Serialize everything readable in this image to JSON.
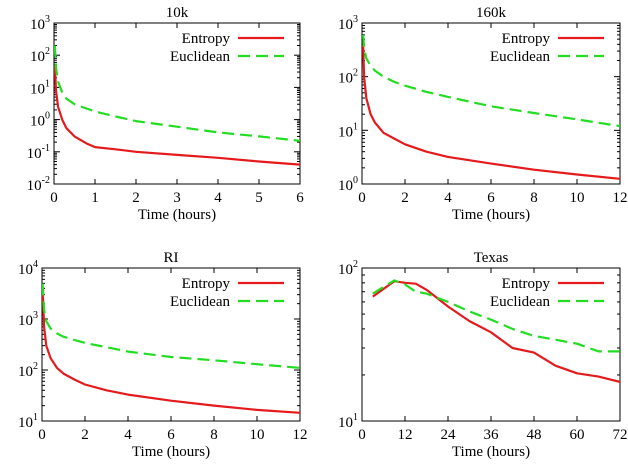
{
  "figure": {
    "colors": {
      "entropy": "#e41a1c",
      "euclidean": "#22dd22",
      "axis": "#000000"
    }
  },
  "chart_data": [
    {
      "type": "line",
      "title": "10k",
      "xlabel": "Time (hours)",
      "ylabel": "",
      "yscale": "log",
      "xlim": [
        0,
        6
      ],
      "ylim": [
        0.01,
        1000
      ],
      "xticks": [
        0,
        1,
        2,
        3,
        4,
        5,
        6
      ],
      "xtick_labels": [
        "0",
        "1",
        "2",
        "3",
        "4",
        "5",
        "6"
      ],
      "yticks": [
        0.01,
        0.1,
        1,
        10,
        100,
        1000
      ],
      "ytick_labels": [
        {
          "base": "10",
          "exp": "-2"
        },
        {
          "base": "10",
          "exp": "-1"
        },
        {
          "base": "10",
          "exp": "0"
        },
        {
          "base": "10",
          "exp": "1"
        },
        {
          "base": "10",
          "exp": "2"
        },
        {
          "base": "10",
          "exp": "3"
        }
      ],
      "legend_position": "top-right",
      "series": [
        {
          "name": "Entropy",
          "style": "solid",
          "x": [
            0.02,
            0.05,
            0.1,
            0.2,
            0.3,
            0.5,
            0.8,
            1.0,
            1.5,
            2.0,
            3.0,
            4.0,
            5.0,
            6.0
          ],
          "y": [
            50,
            8,
            2.5,
            1.0,
            0.55,
            0.3,
            0.18,
            0.14,
            0.12,
            0.1,
            0.08,
            0.065,
            0.05,
            0.04
          ]
        },
        {
          "name": "Euclidean",
          "style": "dashed",
          "x": [
            0.02,
            0.05,
            0.1,
            0.2,
            0.3,
            0.5,
            0.8,
            1.0,
            1.5,
            2.0,
            3.0,
            4.0,
            5.0,
            6.0
          ],
          "y": [
            200,
            40,
            15,
            7,
            4.5,
            3.0,
            2.2,
            1.8,
            1.25,
            0.9,
            0.6,
            0.4,
            0.3,
            0.22
          ]
        }
      ]
    },
    {
      "type": "line",
      "title": "160k",
      "xlabel": "Time (hours)",
      "ylabel": "",
      "yscale": "log",
      "xlim": [
        0,
        12
      ],
      "ylim": [
        1,
        1000
      ],
      "xticks": [
        0,
        2,
        4,
        6,
        8,
        10,
        12
      ],
      "xtick_labels": [
        "0",
        "2",
        "4",
        "6",
        "8",
        "10",
        "12"
      ],
      "yticks": [
        1,
        10,
        100,
        1000
      ],
      "ytick_labels": [
        {
          "base": "10",
          "exp": "0"
        },
        {
          "base": "10",
          "exp": "1"
        },
        {
          "base": "10",
          "exp": "2"
        },
        {
          "base": "10",
          "exp": "3"
        }
      ],
      "legend_position": "top-right",
      "series": [
        {
          "name": "Entropy",
          "style": "solid",
          "x": [
            0.05,
            0.1,
            0.2,
            0.4,
            0.6,
            1.0,
            1.5,
            2.0,
            3.0,
            4.0,
            6.0,
            8.0,
            10.0,
            12.0
          ],
          "y": [
            400,
            100,
            40,
            20,
            14,
            9,
            7,
            5.5,
            4.0,
            3.2,
            2.4,
            1.85,
            1.5,
            1.25
          ]
        },
        {
          "name": "Euclidean",
          "style": "dashed",
          "x": [
            0.05,
            0.1,
            0.2,
            0.4,
            0.6,
            1.0,
            1.5,
            2.0,
            3.0,
            4.0,
            6.0,
            8.0,
            10.0,
            12.0
          ],
          "y": [
            600,
            350,
            220,
            160,
            130,
            100,
            80,
            68,
            52,
            42,
            28,
            21,
            16,
            12
          ]
        }
      ]
    },
    {
      "type": "line",
      "title": "RI",
      "xlabel": "Time (hours)",
      "ylabel": "",
      "yscale": "log",
      "xlim": [
        0,
        12
      ],
      "ylim": [
        10,
        10000
      ],
      "xticks": [
        0,
        2,
        4,
        6,
        8,
        10,
        12
      ],
      "xtick_labels": [
        "0",
        "2",
        "4",
        "6",
        "8",
        "10",
        "12"
      ],
      "yticks": [
        10,
        100,
        1000,
        10000
      ],
      "ytick_labels": [
        {
          "base": "10",
          "exp": "1"
        },
        {
          "base": "10",
          "exp": "2"
        },
        {
          "base": "10",
          "exp": "3"
        },
        {
          "base": "10",
          "exp": "4"
        }
      ],
      "legend_position": "top-right",
      "series": [
        {
          "name": "Entropy",
          "style": "solid",
          "x": [
            0.03,
            0.1,
            0.2,
            0.4,
            0.7,
            1.0,
            1.5,
            2.0,
            3.0,
            4.0,
            6.0,
            8.0,
            10.0,
            12.0
          ],
          "y": [
            4000,
            700,
            300,
            170,
            110,
            85,
            65,
            52,
            40,
            33,
            25,
            20,
            16.5,
            14.5
          ]
        },
        {
          "name": "Euclidean",
          "style": "dashed",
          "x": [
            0.03,
            0.1,
            0.2,
            0.4,
            0.7,
            1.0,
            1.5,
            2.0,
            3.0,
            4.0,
            6.0,
            8.0,
            10.0,
            12.0
          ],
          "y": [
            5000,
            1500,
            900,
            650,
            520,
            450,
            390,
            340,
            280,
            230,
            180,
            155,
            130,
            110
          ]
        }
      ]
    },
    {
      "type": "line",
      "title": "Texas",
      "xlabel": "Time (hours)",
      "ylabel": "",
      "yscale": "log",
      "xlim": [
        0,
        72
      ],
      "ylim": [
        10,
        100
      ],
      "xticks": [
        0,
        12,
        24,
        36,
        48,
        60,
        72
      ],
      "xtick_labels": [
        "0",
        "12",
        "24",
        "36",
        "48",
        "60",
        "72"
      ],
      "yticks": [
        10,
        100
      ],
      "ytick_labels": [
        {
          "base": "10",
          "exp": "1"
        },
        {
          "base": "10",
          "exp": "2"
        }
      ],
      "legend_position": "top-right",
      "series": [
        {
          "name": "Entropy",
          "style": "solid",
          "x": [
            3,
            9,
            12,
            15,
            18,
            24,
            30,
            36,
            42,
            48,
            54,
            60,
            66,
            72
          ],
          "y": [
            65,
            82,
            80,
            79,
            72,
            56,
            45,
            38,
            30,
            28,
            23,
            20.5,
            19.5,
            18
          ]
        },
        {
          "name": "Euclidean",
          "style": "dashed",
          "x": [
            3,
            9,
            12,
            15,
            18,
            24,
            30,
            36,
            42,
            48,
            54,
            60,
            66,
            72
          ],
          "y": [
            68,
            83,
            78,
            70,
            68,
            60,
            52,
            46,
            40,
            36,
            34,
            32,
            28.5,
            28.5
          ]
        }
      ]
    }
  ]
}
